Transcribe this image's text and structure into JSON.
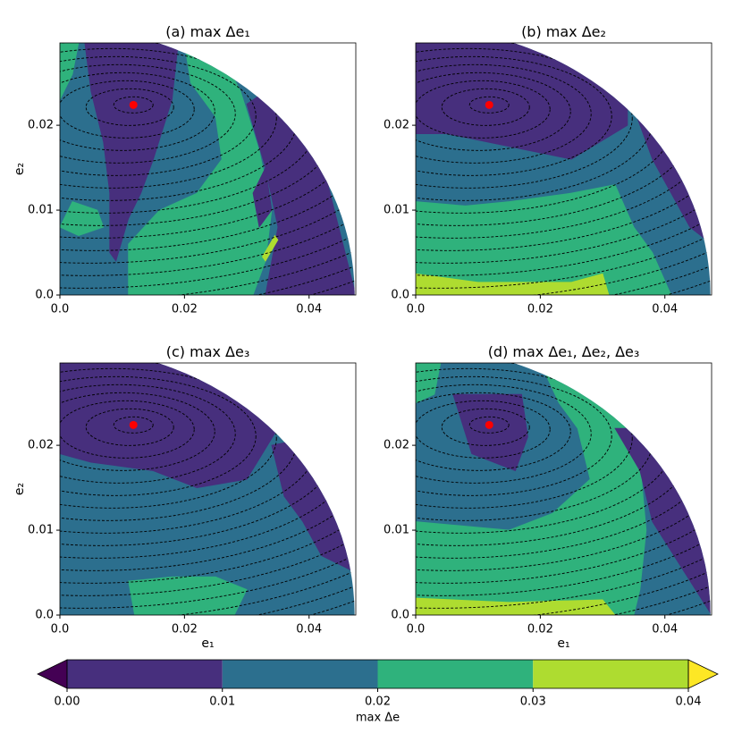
{
  "chart_data": [
    {
      "type": "contour",
      "title": "(a) max Δe₁",
      "ylabel": "e₂",
      "xlim": [
        0,
        0.0475
      ],
      "ylim": [
        0,
        0.0297
      ],
      "xticks": [
        {
          "value": 0,
          "label": "0.0"
        },
        0.02,
        0.04
      ],
      "yticks": [
        {
          "value": 0,
          "label": "0.0"
        },
        0.01,
        0.02
      ],
      "background_level": 0.015,
      "regions": [
        {
          "level": 0.025,
          "points": [
            [
              0,
              0.0297
            ],
            [
              0.003,
              0.0297
            ],
            [
              0.002,
              0.026
            ],
            [
              0,
              0.023
            ]
          ]
        },
        {
          "level": 0.025,
          "points": [
            [
              0.02,
              0.0297
            ],
            [
              0.025,
              0.0297
            ],
            [
              0.029,
              0.024
            ],
            [
              0.032,
              0.017
            ],
            [
              0.034,
              0.01
            ],
            [
              0.033,
              0.004
            ],
            [
              0.031,
              0
            ],
            [
              0.011,
              0
            ],
            [
              0.011,
              0.006
            ],
            [
              0.016,
              0.01
            ],
            [
              0.022,
              0.012
            ],
            [
              0.026,
              0.016
            ],
            [
              0.025,
              0.021
            ],
            [
              0.021,
              0.025
            ]
          ]
        },
        {
          "level": 0.025,
          "points": [
            [
              0.002,
              0.011
            ],
            [
              0.006,
              0.01
            ],
            [
              0.007,
              0.008
            ],
            [
              0.003,
              0.007
            ],
            [
              0,
              0.008
            ]
          ]
        },
        {
          "level": 0.005,
          "points": [
            [
              0.004,
              0.0297
            ],
            [
              0.019,
              0.0297
            ],
            [
              0.018,
              0.023
            ],
            [
              0.015,
              0.016
            ],
            [
              0.013,
              0.012
            ],
            [
              0.011,
              0.009
            ],
            [
              0.009,
              0.004
            ],
            [
              0.008,
              0.005
            ],
            [
              0.008,
              0.012
            ],
            [
              0.007,
              0.018
            ],
            [
              0.005,
              0.024
            ]
          ]
        },
        {
          "level": 0.005,
          "points": [
            [
              0.03,
              0.0225
            ],
            [
              0.033,
              0.015
            ],
            [
              0.035,
              0.008
            ],
            [
              0.033,
              0
            ],
            [
              0.0475,
              0
            ],
            [
              0.042,
              0.016
            ],
            [
              0.035,
              0.025
            ]
          ]
        },
        {
          "level": 0.005,
          "points": [
            [
              0.033,
              0.015
            ],
            [
              0.031,
              0.012
            ],
            [
              0.032,
              0.008
            ],
            [
              0.034,
              0.01
            ]
          ]
        },
        {
          "level": 0.035,
          "points": [
            [
              0.0325,
              0.0045
            ],
            [
              0.0345,
              0.007
            ],
            [
              0.035,
              0.0065
            ],
            [
              0.033,
              0.004
            ]
          ]
        }
      ],
      "point": {
        "x": 0.0118,
        "y": 0.0224,
        "color": "#ff0000"
      }
    },
    {
      "type": "contour",
      "title": "(b) max Δe₂",
      "xlim": [
        0,
        0.0475
      ],
      "ylim": [
        0,
        0.0297
      ],
      "xticks": [
        {
          "value": 0,
          "label": "0.0"
        },
        0.02,
        0.04
      ],
      "yticks": [
        {
          "value": 0,
          "label": "0.0"
        },
        0.01,
        0.02
      ],
      "background_level": 0.015,
      "regions": [
        {
          "level": 0.005,
          "points": [
            [
              0,
              0.0297
            ],
            [
              0.034,
              0.0297
            ],
            [
              0.034,
              0.02
            ],
            [
              0.025,
              0.016
            ],
            [
              0.015,
              0.0175
            ],
            [
              0.005,
              0.019
            ],
            [
              0,
              0.019
            ]
          ]
        },
        {
          "level": 0.005,
          "points": [
            [
              0.035,
              0.022
            ],
            [
              0.038,
              0.016
            ],
            [
              0.041,
              0.012
            ],
            [
              0.044,
              0.008
            ],
            [
              0.0475,
              0.006
            ],
            [
              0.0475,
              0.022
            ]
          ]
        },
        {
          "level": 0.025,
          "points": [
            [
              0,
              0
            ],
            [
              0,
              0.011
            ],
            [
              0.008,
              0.0105
            ],
            [
              0.015,
              0.011
            ],
            [
              0.025,
              0.012
            ],
            [
              0.032,
              0.013
            ],
            [
              0.035,
              0.008
            ],
            [
              0.038,
              0.005
            ],
            [
              0.041,
              0
            ]
          ]
        },
        {
          "level": 0.035,
          "points": [
            [
              0,
              0
            ],
            [
              0,
              0.0025
            ],
            [
              0.01,
              0.0015
            ],
            [
              0.025,
              0.0015
            ],
            [
              0.03,
              0.0025
            ],
            [
              0.031,
              0
            ]
          ]
        }
      ],
      "point": {
        "x": 0.0118,
        "y": 0.0224,
        "color": "#ff0000"
      }
    },
    {
      "type": "contour",
      "title": "(c) max Δe₃",
      "xlabel": "e₁",
      "ylabel": "e₂",
      "xlim": [
        0,
        0.0475
      ],
      "ylim": [
        0,
        0.0297
      ],
      "xticks": [
        {
          "value": 0,
          "label": "0.0"
        },
        0.02,
        0.04
      ],
      "yticks": [
        {
          "value": 0,
          "label": "0.0"
        },
        0.01,
        0.02
      ],
      "background_level": 0.015,
      "regions": [
        {
          "level": 0.005,
          "points": [
            [
              0,
              0.0297
            ],
            [
              0.036,
              0.0297
            ],
            [
              0.035,
              0.022
            ],
            [
              0.03,
              0.016
            ],
            [
              0.022,
              0.015
            ],
            [
              0.015,
              0.017
            ],
            [
              0.005,
              0.018
            ],
            [
              0,
              0.019
            ]
          ]
        },
        {
          "level": 0.005,
          "points": [
            [
              0.034,
              0.02
            ],
            [
              0.036,
              0.014
            ],
            [
              0.039,
              0.011
            ],
            [
              0.042,
              0.007
            ],
            [
              0.0475,
              0.005
            ],
            [
              0.0475,
              0.022
            ]
          ]
        },
        {
          "level": 0.025,
          "points": [
            [
              0.012,
              0
            ],
            [
              0.011,
              0.004
            ],
            [
              0.018,
              0.0045
            ],
            [
              0.025,
              0.0045
            ],
            [
              0.03,
              0.003
            ],
            [
              0.028,
              0
            ]
          ]
        }
      ],
      "point": {
        "x": 0.0118,
        "y": 0.0224,
        "color": "#ff0000"
      }
    },
    {
      "type": "contour",
      "title": "(d) max Δe₁, Δe₂, Δe₃",
      "xlabel": "e₁",
      "xlim": [
        0,
        0.0475
      ],
      "ylim": [
        0,
        0.0297
      ],
      "xticks": [
        {
          "value": 0,
          "label": "0.0"
        },
        0.02,
        0.04
      ],
      "yticks": [
        {
          "value": 0,
          "label": "0.0"
        },
        0.01,
        0.02
      ],
      "background_level": 0.015,
      "regions": [
        {
          "level": 0.025,
          "points": [
            [
              0,
              0.0297
            ],
            [
              0.004,
              0.0297
            ],
            [
              0.003,
              0.026
            ],
            [
              0,
              0.025
            ]
          ]
        },
        {
          "level": 0.025,
          "points": [
            [
              0.02,
              0.0297
            ],
            [
              0.03,
              0.0297
            ],
            [
              0.034,
              0.024
            ],
            [
              0.036,
              0.018
            ],
            [
              0.037,
              0.01
            ],
            [
              0.036,
              0.003
            ],
            [
              0.035,
              0
            ],
            [
              0,
              0
            ],
            [
              0,
              0.011
            ],
            [
              0.015,
              0.01
            ],
            [
              0.022,
              0.012
            ],
            [
              0.028,
              0.016
            ],
            [
              0.026,
              0.022
            ],
            [
              0.023,
              0.025
            ]
          ]
        },
        {
          "level": 0.005,
          "points": [
            [
              0.006,
              0.026
            ],
            [
              0.017,
              0.026
            ],
            [
              0.018,
              0.021
            ],
            [
              0.016,
              0.017
            ],
            [
              0.009,
              0.019
            ]
          ]
        },
        {
          "level": 0.005,
          "points": [
            [
              0.032,
              0.022
            ],
            [
              0.036,
              0.017
            ],
            [
              0.038,
              0.011
            ],
            [
              0.0475,
              0
            ],
            [
              0.0475,
              0.022
            ]
          ]
        },
        {
          "level": 0.035,
          "points": [
            [
              0,
              0
            ],
            [
              0,
              0.002
            ],
            [
              0.015,
              0.0015
            ],
            [
              0.03,
              0.0018
            ],
            [
              0.032,
              0
            ]
          ]
        }
      ],
      "point": {
        "x": 0.0118,
        "y": 0.0224,
        "color": "#ff0000"
      }
    },
    {
      "type": "colorbar",
      "label": "max Δe",
      "xlim": [
        0,
        0.04
      ],
      "ticks": [
        {
          "value": 0,
          "label": "0.00"
        },
        {
          "value": 0.01,
          "label": "0.01"
        },
        {
          "value": 0.02,
          "label": "0.02"
        },
        {
          "value": 0.03,
          "label": "0.03"
        },
        {
          "value": 0.04,
          "label": "0.04"
        }
      ],
      "colors": [
        "#472f7d",
        "#2c6f8e",
        "#2fb27c",
        "#aedc30"
      ],
      "under": "#440154",
      "over": "#fde725"
    }
  ]
}
